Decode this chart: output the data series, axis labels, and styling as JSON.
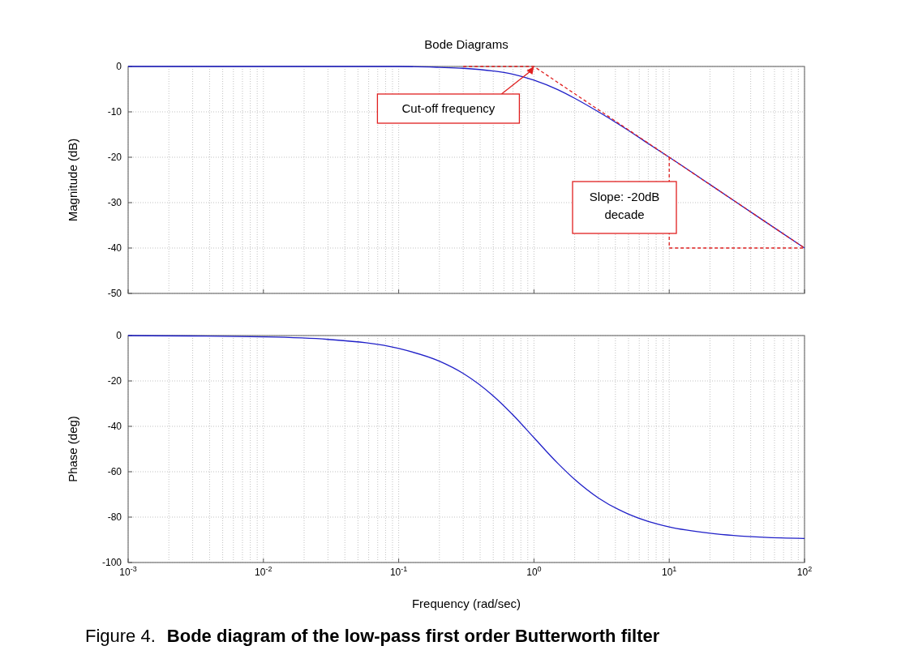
{
  "chart_data": [
    {
      "type": "line",
      "title": "Bode Diagrams",
      "ylabel": "Magnitude (dB)",
      "log": "x",
      "grid": true,
      "tick_labels": "y",
      "xlim": [
        0.001,
        100
      ],
      "ylim": [
        -50,
        0
      ],
      "yticks": [
        0,
        -10,
        -20,
        -30,
        -40,
        -50
      ],
      "xticks": [
        {
          "value": 0.001,
          "label": null
        },
        {
          "value": 0.01,
          "label": null
        },
        {
          "value": 0.1,
          "label": null
        },
        {
          "value": 1,
          "label": null
        },
        {
          "value": 10,
          "label": null
        },
        {
          "value": 100,
          "label": null
        }
      ],
      "series": [
        {
          "color": "#2020c8",
          "x": [
            0.001,
            0.01,
            0.1,
            0.2,
            0.3,
            0.5,
            0.7,
            1,
            1.5,
            2,
            3,
            5,
            7,
            10,
            20,
            50,
            100
          ],
          "values": [
            0,
            0,
            0,
            -0.2,
            -0.4,
            -1,
            -1.7,
            -3,
            -5.1,
            -7,
            -10,
            -14.1,
            -17,
            -20,
            -26,
            -34,
            -40
          ]
        },
        {
          "color": "#e02020",
          "line_style": "dashed",
          "x": [
            0.3,
            1,
            100
          ],
          "values": [
            0,
            0,
            -40
          ]
        },
        {
          "color": "#e02020",
          "line_style": "dashed",
          "x": [
            10,
            10,
            100
          ],
          "values": [
            -20,
            -40,
            -40
          ]
        }
      ],
      "annotations": [
        {
          "text": "Cut-off frequency",
          "x": 1,
          "y": 0
        },
        "Slope: -20dB\ndecade"
      ]
    },
    {
      "type": "line",
      "ylabel": "Phase (deg)",
      "xlabel": "Frequency (rad/sec)",
      "log": "x",
      "grid": true,
      "xlim": [
        0.001,
        100
      ],
      "ylim": [
        -100,
        0
      ],
      "yticks": [
        0,
        -20,
        -40,
        -60,
        -80,
        -100
      ],
      "xticks": [
        {
          "value": 0.001,
          "label": "10$^{-3}$"
        },
        {
          "value": 0.01,
          "label": "10$^{-2}$"
        },
        {
          "value": 0.1,
          "label": "10$^{-1}$"
        },
        {
          "value": 1,
          "label": "10$^{0}$"
        },
        {
          "value": 10,
          "label": "10$^{1}$"
        },
        {
          "value": 100,
          "label": "10$^{2}$"
        }
      ],
      "series": [
        {
          "color": "#2020c8",
          "x": [
            0.001,
            0.01,
            0.03,
            0.1,
            0.2,
            0.3,
            0.5,
            0.7,
            1,
            1.5,
            2,
            3,
            5,
            7,
            10,
            20,
            50,
            100
          ],
          "values": [
            0,
            -0.6,
            -1.7,
            -5.7,
            -11.3,
            -16.7,
            -26.6,
            -35,
            -45,
            -56.3,
            -63.4,
            -71.6,
            -78.7,
            -81.9,
            -84.3,
            -87.1,
            -88.9,
            -89.4
          ]
        }
      ],
      "annotations": [
        "Figure 4. Bode diagram of the low-pass first order Butterworth filter"
      ]
    }
  ]
}
